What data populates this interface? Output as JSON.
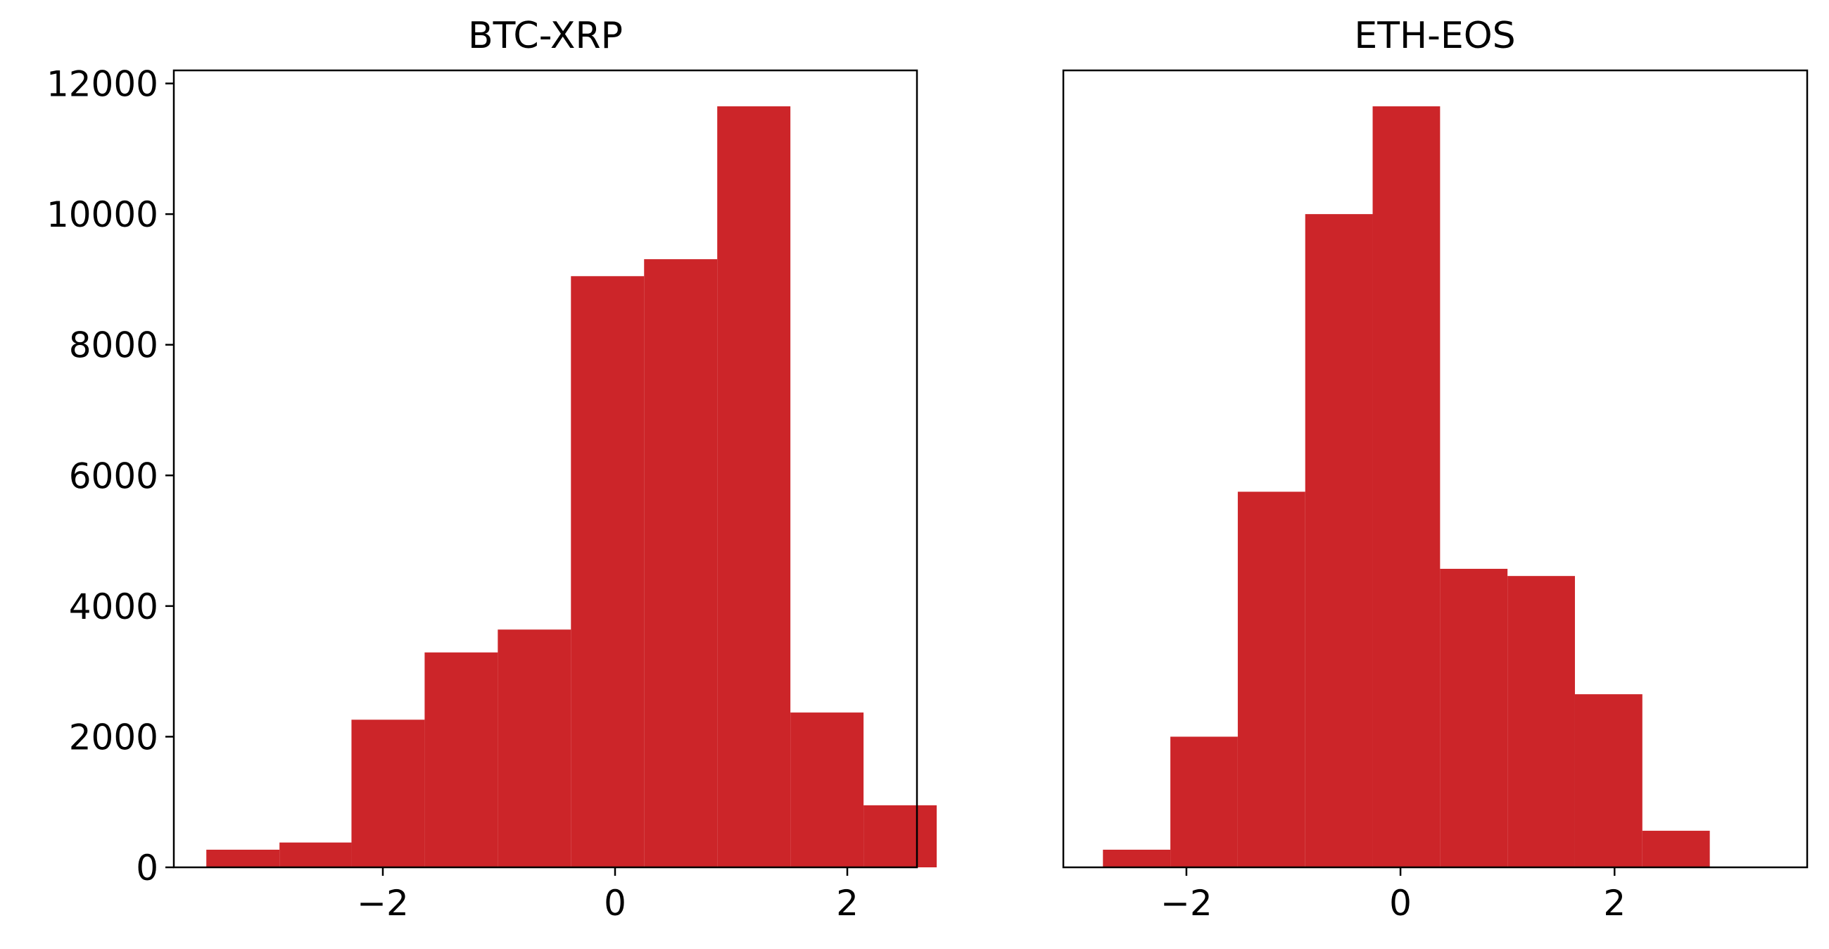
{
  "chart_data": [
    {
      "type": "bar",
      "title": "BTC-XRP",
      "xlabel": "",
      "ylabel": "",
      "xlim": [
        -3.8,
        2.6
      ],
      "ylim": [
        0,
        12200
      ],
      "x_ticks": [
        -2,
        0,
        2
      ],
      "x_tick_labels": [
        "−2",
        "0",
        "2"
      ],
      "y_ticks": [
        0,
        2000,
        4000,
        6000,
        8000,
        10000,
        12000
      ],
      "y_tick_labels": [
        "0",
        "2000",
        "4000",
        "6000",
        "8000",
        "10000",
        "12000"
      ],
      "show_y_axis": true,
      "grid": false,
      "bins": [
        {
          "x0": -3.52,
          "x1": -2.89,
          "count": 270
        },
        {
          "x0": -2.89,
          "x1": -2.27,
          "count": 380
        },
        {
          "x0": -2.27,
          "x1": -1.64,
          "count": 2260
        },
        {
          "x0": -1.64,
          "x1": -1.01,
          "count": 3290
        },
        {
          "x0": -1.01,
          "x1": -0.38,
          "count": 3640
        },
        {
          "x0": -0.38,
          "x1": 0.25,
          "count": 9050
        },
        {
          "x0": 0.25,
          "x1": 0.88,
          "count": 9310
        },
        {
          "x0": 0.88,
          "x1": 1.51,
          "count": 11650
        },
        {
          "x0": 1.51,
          "x1": 2.14,
          "count": 2370
        },
        {
          "x0": 2.14,
          "x1": 2.77,
          "count": 950
        }
      ]
    },
    {
      "type": "bar",
      "title": "ETH-EOS",
      "xlabel": "",
      "ylabel": "",
      "xlim": [
        -3.15,
        3.8
      ],
      "ylim": [
        0,
        12200
      ],
      "x_ticks": [
        -2,
        0,
        2
      ],
      "x_tick_labels": [
        "−2",
        "0",
        "2"
      ],
      "y_ticks": [],
      "y_tick_labels": [],
      "show_y_axis": false,
      "grid": false,
      "bins": [
        {
          "x0": -2.78,
          "x1": -2.15,
          "count": 270
        },
        {
          "x0": -2.15,
          "x1": -1.52,
          "count": 2000
        },
        {
          "x0": -1.52,
          "x1": -0.89,
          "count": 5750
        },
        {
          "x0": -0.89,
          "x1": -0.26,
          "count": 10000
        },
        {
          "x0": -0.26,
          "x1": 0.37,
          "count": 11650
        },
        {
          "x0": 0.37,
          "x1": 1.0,
          "count": 4570
        },
        {
          "x0": 1.0,
          "x1": 1.63,
          "count": 4460
        },
        {
          "x0": 1.63,
          "x1": 2.26,
          "count": 2650
        },
        {
          "x0": 2.26,
          "x1": 2.89,
          "count": 560
        }
      ]
    }
  ],
  "style": {
    "bar_color": "#cc2529",
    "axis_color": "#000000",
    "background": "#ffffff"
  }
}
